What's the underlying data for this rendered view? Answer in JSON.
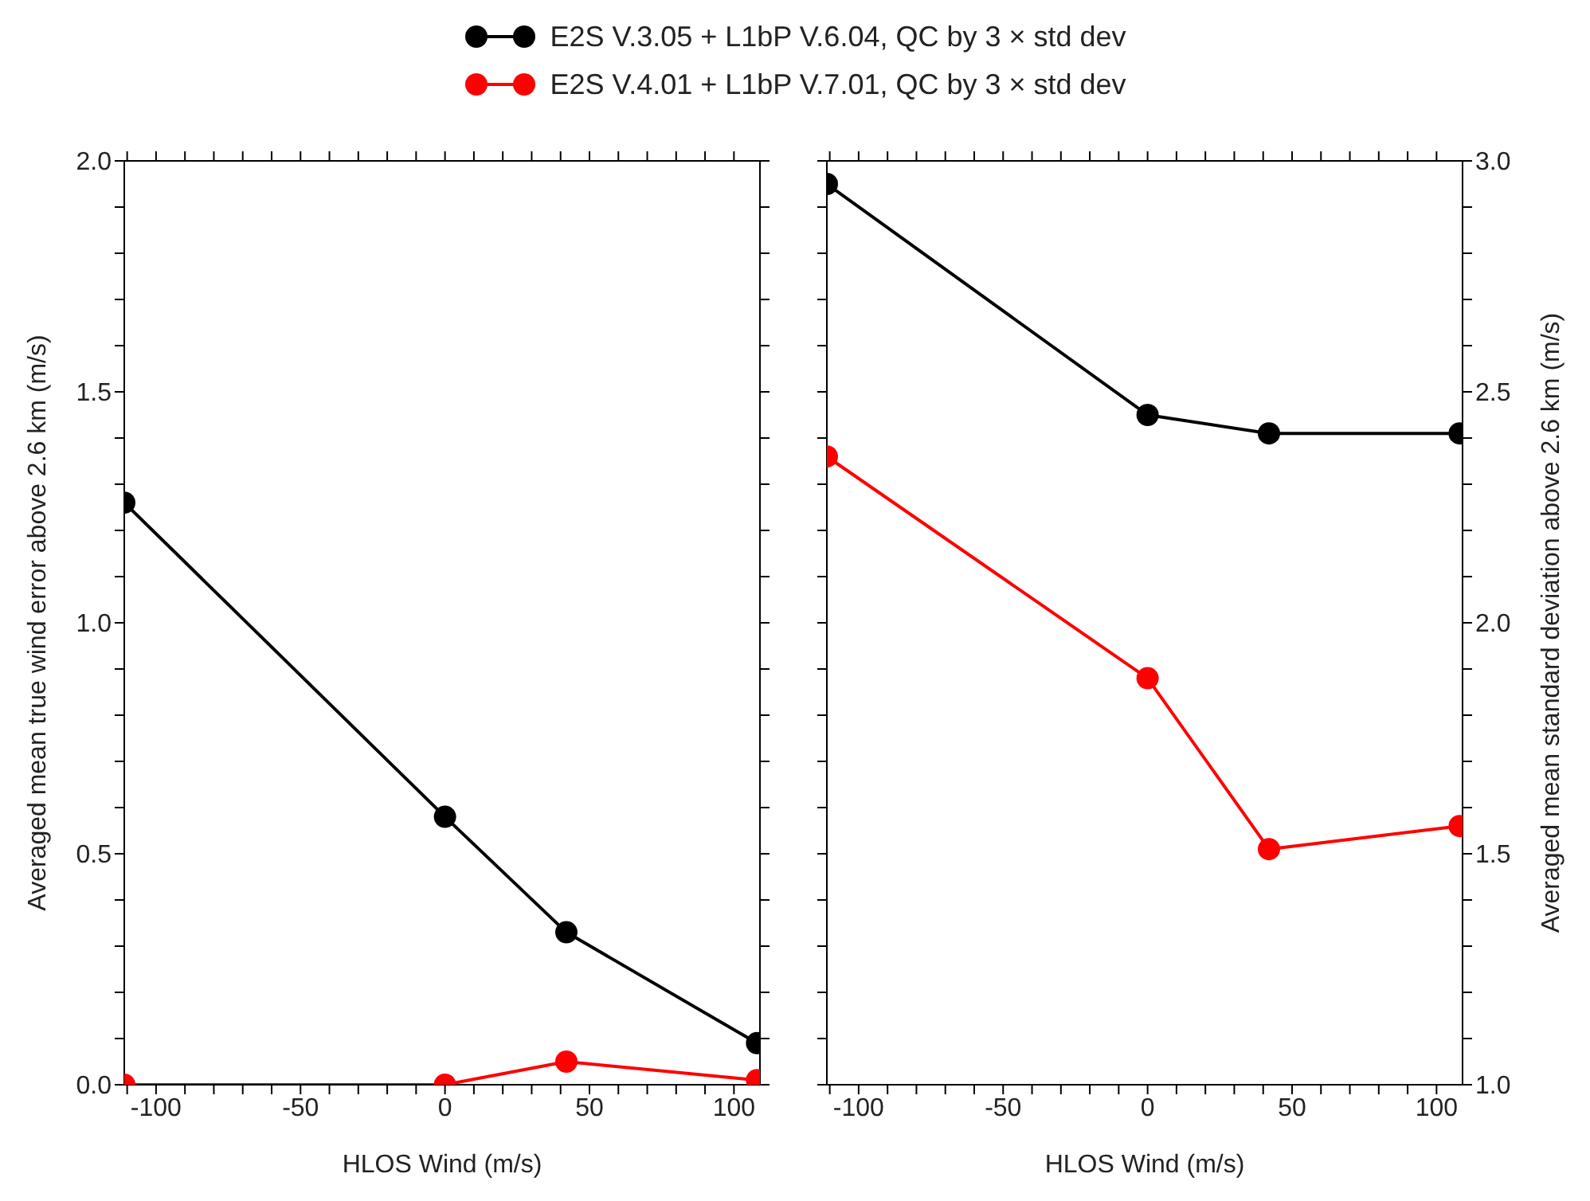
{
  "chart_data": [
    {
      "type": "line",
      "xlabel": "HLOS Wind (m/s)",
      "ylabel": "Averaged mean true wind error above 2.6 km (m/s)",
      "x": [
        -111,
        0,
        42,
        108
      ],
      "xlim": [
        -111,
        109
      ],
      "xticks": [
        {
          "value": -110,
          "label": null
        },
        -100,
        {
          "value": -90,
          "label": null
        },
        {
          "value": -80,
          "label": null
        },
        {
          "value": -70,
          "label": null
        },
        {
          "value": -60,
          "label": null
        },
        -50,
        {
          "value": -40,
          "label": null
        },
        {
          "value": -30,
          "label": null
        },
        {
          "value": -20,
          "label": null
        },
        {
          "value": -10,
          "label": null
        },
        0,
        {
          "value": 10,
          "label": null
        },
        {
          "value": 20,
          "label": null
        },
        {
          "value": 30,
          "label": null
        },
        {
          "value": 40,
          "label": null
        },
        50,
        {
          "value": 60,
          "label": null
        },
        {
          "value": 70,
          "label": null
        },
        {
          "value": 80,
          "label": null
        },
        {
          "value": 90,
          "label": null
        },
        100
      ],
      "ylim": [
        0,
        2
      ],
      "yticks": [
        {
          "value": 0,
          "label": "0.0"
        },
        {
          "value": 0.1,
          "label": null
        },
        {
          "value": 0.2,
          "label": null
        },
        {
          "value": 0.3,
          "label": null
        },
        {
          "value": 0.4,
          "label": null
        },
        {
          "value": 0.5,
          "label": "0.5"
        },
        {
          "value": 0.6,
          "label": null
        },
        {
          "value": 0.7,
          "label": null
        },
        {
          "value": 0.8,
          "label": null
        },
        {
          "value": 0.9,
          "label": null
        },
        {
          "value": 1,
          "label": "1.0"
        },
        {
          "value": 1.1,
          "label": null
        },
        {
          "value": 1.2,
          "label": null
        },
        {
          "value": 1.3,
          "label": null
        },
        {
          "value": 1.4,
          "label": null
        },
        {
          "value": 1.5,
          "label": "1.5"
        },
        {
          "value": 1.6,
          "label": null
        },
        {
          "value": 1.7,
          "label": null
        },
        {
          "value": 1.8,
          "label": null
        },
        {
          "value": 1.9,
          "label": null
        },
        {
          "value": 2,
          "label": "2.0"
        }
      ],
      "marker": "circle",
      "legend": "top",
      "series": [
        {
          "name": "E2S V.3.05 + L1bP V.6.04, QC by 3 × std dev",
          "color": "#000000",
          "values": [
            1.26,
            0.58,
            0.33,
            0.09
          ]
        },
        {
          "name": "E2S V.4.01 + L1bP V.7.01, QC by 3 × std dev",
          "color": "#ff0000",
          "values": [
            0.0,
            0.0,
            0.05,
            0.01
          ]
        }
      ]
    },
    {
      "type": "line",
      "xlabel": "HLOS Wind (m/s)",
      "ylabel": "Averaged mean standard deviation above 2.6 km (m/s)",
      "x": [
        -111,
        0,
        42,
        108
      ],
      "xlim": [
        -111,
        109
      ],
      "xticks": [
        {
          "value": -110,
          "label": null
        },
        -100,
        {
          "value": -90,
          "label": null
        },
        {
          "value": -80,
          "label": null
        },
        {
          "value": -70,
          "label": null
        },
        {
          "value": -60,
          "label": null
        },
        -50,
        {
          "value": -40,
          "label": null
        },
        {
          "value": -30,
          "label": null
        },
        {
          "value": -20,
          "label": null
        },
        {
          "value": -10,
          "label": null
        },
        0,
        {
          "value": 10,
          "label": null
        },
        {
          "value": 20,
          "label": null
        },
        {
          "value": 30,
          "label": null
        },
        {
          "value": 40,
          "label": null
        },
        50,
        {
          "value": 60,
          "label": null
        },
        {
          "value": 70,
          "label": null
        },
        {
          "value": 80,
          "label": null
        },
        {
          "value": 90,
          "label": null
        },
        100
      ],
      "ylim": [
        1,
        3
      ],
      "yticks": [
        {
          "value": 1,
          "label": "1.0"
        },
        {
          "value": 1.1,
          "label": null
        },
        {
          "value": 1.2,
          "label": null
        },
        {
          "value": 1.3,
          "label": null
        },
        {
          "value": 1.4,
          "label": null
        },
        {
          "value": 1.5,
          "label": "1.5"
        },
        {
          "value": 1.6,
          "label": null
        },
        {
          "value": 1.7,
          "label": null
        },
        {
          "value": 1.8,
          "label": null
        },
        {
          "value": 1.9,
          "label": null
        },
        {
          "value": 2,
          "label": "2.0"
        },
        {
          "value": 2.1,
          "label": null
        },
        {
          "value": 2.2,
          "label": null
        },
        {
          "value": 2.3,
          "label": null
        },
        {
          "value": 2.4,
          "label": null
        },
        {
          "value": 2.5,
          "label": "2.5"
        },
        {
          "value": 2.6,
          "label": null
        },
        {
          "value": 2.7,
          "label": null
        },
        {
          "value": 2.8,
          "label": null
        },
        {
          "value": 2.9,
          "label": null
        },
        {
          "value": 3,
          "label": "3.0"
        }
      ],
      "marker": "circle",
      "series": [
        {
          "color": "#000000",
          "values": [
            2.95,
            2.45,
            2.41,
            2.41
          ]
        },
        {
          "color": "#ff0000",
          "values": [
            2.36,
            1.88,
            1.51,
            1.56
          ]
        }
      ]
    }
  ]
}
